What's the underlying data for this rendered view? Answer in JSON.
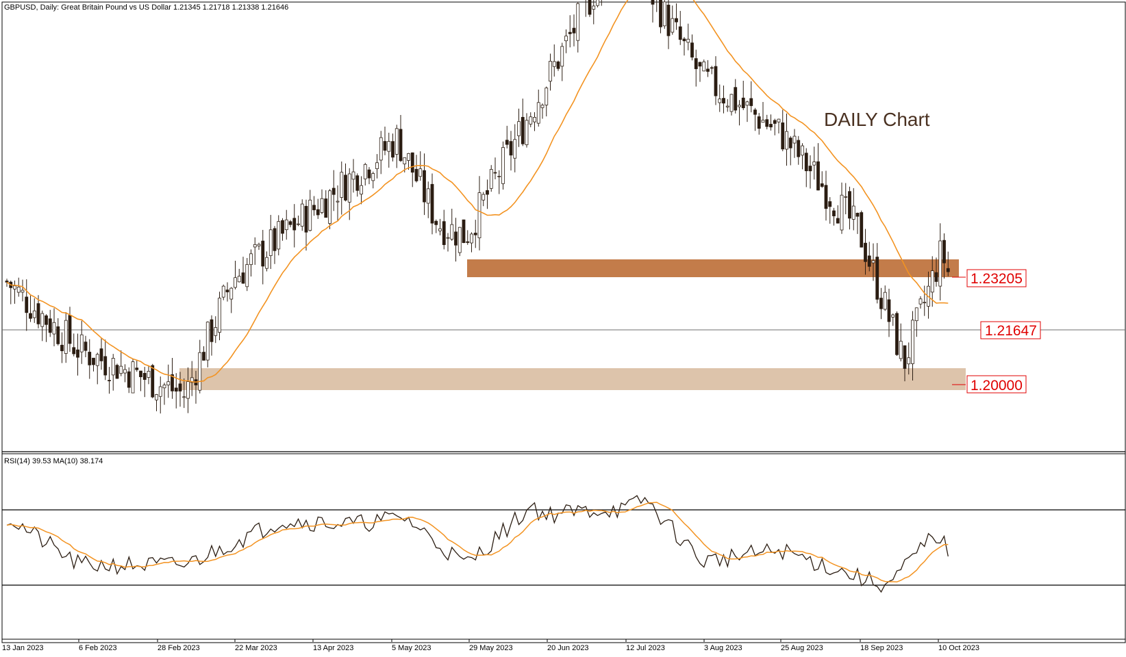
{
  "header": {
    "title": "GBPUSD, Daily:  Great Britain Pound vs US Dollar  1.21345 1.21718 1.21338 1.21646",
    "annotation": "DAILY Chart"
  },
  "rsi": {
    "label": "RSI(14) 39.53 MA(10) 38.174",
    "upper_level": 70,
    "lower_level": 30
  },
  "colors": {
    "candle": "#2b1d12",
    "body_up": "#ffffff",
    "ma": "#f39321",
    "resistance_zone": "#c37c4a",
    "support_zone": "#ddc4ab",
    "level_text": "#e00000",
    "rsi_line": "#2b1d12"
  },
  "levels": [
    {
      "value": "1.23205",
      "price": 1.23205
    },
    {
      "value": "1.21647",
      "price": 1.21647
    },
    {
      "value": "1.20000",
      "price": 1.2
    }
  ],
  "zones": [
    {
      "name": "resistance",
      "price_top": 1.2345,
      "price_bottom": 1.2318
    },
    {
      "name": "support",
      "price_top": 1.2057,
      "price_bottom": 1.2026
    }
  ],
  "chart_data": {
    "type": "candlestick",
    "title": "GBPUSD, Daily:  Great Britain Pound vs US Dollar  1.21345 1.21718 1.21338 1.21646",
    "symbol": "GBPUSD",
    "timeframe": "Daily",
    "last_ohlc": {
      "open": 1.21345,
      "high": 1.21718,
      "low": 1.21338,
      "close": 1.21646
    },
    "x_ticks": [
      "13 Jan 2023",
      "6 Feb 2023",
      "28 Feb 2023",
      "22 Mar 2023",
      "13 Apr 2023",
      "5 May 2023",
      "29 May 2023",
      "20 Jun 2023",
      "12 Jul 2023",
      "3 Aug 2023",
      "25 Aug 2023",
      "18 Sep 2023",
      "10 Oct 2023"
    ],
    "price_range": [
      1.1795,
      1.2965
    ],
    "close_series": {
      "dates": [
        "13 Jan 2023",
        "6 Feb 2023",
        "28 Feb 2023",
        "22 Mar 2023",
        "13 Apr 2023",
        "5 May 2023",
        "29 May 2023",
        "20 Jun 2023",
        "12 Jul 2023",
        "3 Aug 2023",
        "25 Aug 2023",
        "18 Sep 2023",
        "10 Oct 2023"
      ],
      "values": [
        1.2235,
        1.2055,
        1.1935,
        1.2245,
        1.2432,
        1.2615,
        1.2357,
        1.274,
        1.311,
        1.2775,
        1.263,
        1.2367,
        1.224
      ]
    },
    "rsi_series": {
      "dates": [
        "13 Jan 2023",
        "6 Feb 2023",
        "28 Feb 2023",
        "22 Mar 2023",
        "13 Apr 2023",
        "5 May 2023",
        "29 May 2023",
        "20 Jun 2023",
        "12 Jul 2023",
        "3 Aug 2023",
        "25 Aug 2023",
        "18 Sep 2023",
        "10 Oct 2023"
      ],
      "values": [
        66,
        40,
        40,
        64,
        62,
        66,
        40,
        67,
        70,
        42,
        48,
        30,
        48
      ]
    },
    "rsi_ylim": [
      0,
      100
    ],
    "ma_period_label": "MA(10)"
  }
}
